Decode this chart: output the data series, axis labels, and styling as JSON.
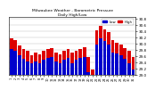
{
  "title": "Milwaukee Weather - Barometric Pressure",
  "subtitle": "Daily High/Low",
  "legend_high": "High",
  "legend_low": "Low",
  "bar_color_high": "#dd0000",
  "bar_color_low": "#0000cc",
  "background_color": "#ffffff",
  "ylim": [
    29.0,
    30.85
  ],
  "yticks": [
    29.0,
    29.2,
    29.4,
    29.6,
    29.8,
    30.0,
    30.2,
    30.4,
    30.6,
    30.8
  ],
  "ytick_labels": [
    "29.0",
    "29.2",
    "29.4",
    "29.6",
    "29.8",
    "30.0",
    "30.2",
    "30.4",
    "30.6",
    "30.8"
  ],
  "days": [
    "1",
    "2",
    "3",
    "4",
    "5",
    "6",
    "7",
    "8",
    "9",
    "10",
    "11",
    "12",
    "13",
    "14",
    "15",
    "16",
    "17",
    "18",
    "19",
    "20",
    "21",
    "22",
    "23",
    "24",
    "25",
    "26",
    "27",
    "28",
    "29",
    "30",
    "31"
  ],
  "highs": [
    30.18,
    30.12,
    29.95,
    29.82,
    29.78,
    29.62,
    29.72,
    29.66,
    29.76,
    29.82,
    29.86,
    29.72,
    29.66,
    29.76,
    29.82,
    29.72,
    29.76,
    29.82,
    29.88,
    29.58,
    29.18,
    30.42,
    30.58,
    30.46,
    30.36,
    30.12,
    30.02,
    29.96,
    29.86,
    29.76,
    29.56
  ],
  "lows": [
    29.82,
    29.78,
    29.62,
    29.52,
    29.42,
    29.38,
    29.44,
    29.38,
    29.48,
    29.54,
    29.58,
    29.44,
    29.38,
    29.48,
    29.54,
    29.38,
    29.48,
    29.54,
    29.58,
    29.08,
    28.85,
    29.98,
    30.18,
    30.08,
    29.98,
    29.72,
    29.68,
    29.62,
    29.52,
    29.38,
    29.18
  ]
}
